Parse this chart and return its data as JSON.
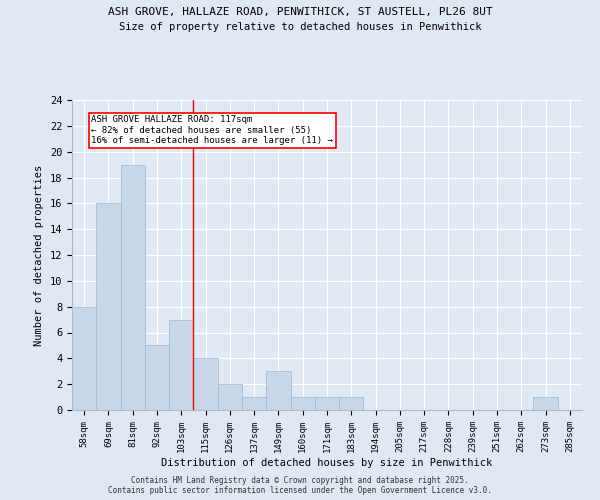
{
  "title_line1": "ASH GROVE, HALLAZE ROAD, PENWITHICK, ST AUSTELL, PL26 8UT",
  "title_line2": "Size of property relative to detached houses in Penwithick",
  "xlabel": "Distribution of detached houses by size in Penwithick",
  "ylabel": "Number of detached properties",
  "categories": [
    "58sqm",
    "69sqm",
    "81sqm",
    "92sqm",
    "103sqm",
    "115sqm",
    "126sqm",
    "137sqm",
    "149sqm",
    "160sqm",
    "171sqm",
    "183sqm",
    "194sqm",
    "205sqm",
    "217sqm",
    "228sqm",
    "239sqm",
    "251sqm",
    "262sqm",
    "273sqm",
    "285sqm"
  ],
  "values": [
    8,
    16,
    19,
    5,
    7,
    4,
    2,
    1,
    3,
    1,
    1,
    1,
    0,
    0,
    0,
    0,
    0,
    0,
    0,
    1,
    0
  ],
  "bar_color": "#c8d8e8",
  "bar_edge_color": "#a0b8d0",
  "background_color": "#e0e8f4",
  "grid_color": "#ffffff",
  "vline_x_index": 5,
  "vline_color": "red",
  "annotation_text": "ASH GROVE HALLAZE ROAD: 117sqm\n← 82% of detached houses are smaller (55)\n16% of semi-detached houses are larger (11) →",
  "annotation_box_color": "white",
  "annotation_box_edge": "red",
  "ylim": [
    0,
    24
  ],
  "yticks": [
    0,
    2,
    4,
    6,
    8,
    10,
    12,
    14,
    16,
    18,
    20,
    22,
    24
  ],
  "footer_line1": "Contains HM Land Registry data © Crown copyright and database right 2025.",
  "footer_line2": "Contains public sector information licensed under the Open Government Licence v3.0."
}
